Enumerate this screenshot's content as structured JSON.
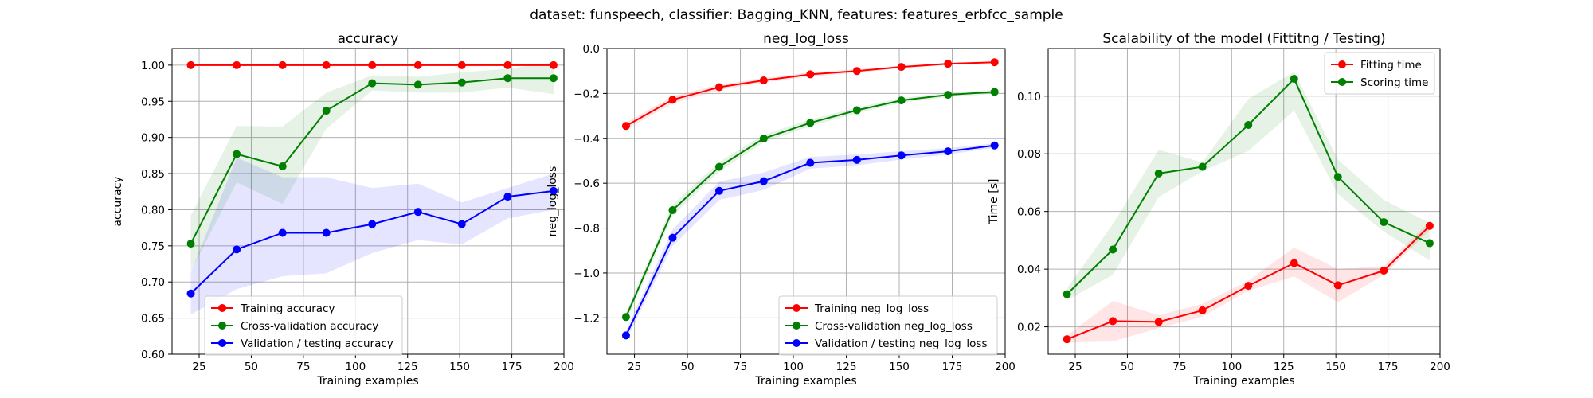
{
  "suptitle": "dataset: funspeech, classifier: Bagging_KNN, features: features_erbfcc_sample",
  "colors": {
    "red": "#ff0000",
    "green": "#008000",
    "blue": "#0000ff"
  },
  "chart_data": [
    {
      "type": "line",
      "title": "accuracy",
      "xlabel": "Training examples",
      "ylabel": "accuracy",
      "xlim": [
        12,
        200
      ],
      "ylim": [
        0.6,
        1.023
      ],
      "xticks": [
        25,
        50,
        75,
        100,
        125,
        150,
        175,
        200
      ],
      "yticks": [
        0.6,
        0.65,
        0.7,
        0.75,
        0.8,
        0.85,
        0.9,
        0.95,
        1.0
      ],
      "ytick_labels": [
        "0.60",
        "0.65",
        "0.70",
        "0.75",
        "0.80",
        "0.85",
        "0.90",
        "0.95",
        "1.00"
      ],
      "grid": true,
      "legend": "lower left",
      "x": [
        21,
        43,
        65,
        86,
        108,
        130,
        151,
        173,
        195
      ],
      "series": [
        {
          "name": "Training accuracy",
          "color": "#ff0000",
          "values": [
            1.0,
            1.0,
            1.0,
            1.0,
            1.0,
            1.0,
            1.0,
            1.0,
            1.0
          ],
          "lower": [
            1.0,
            1.0,
            1.0,
            1.0,
            1.0,
            1.0,
            1.0,
            1.0,
            1.0
          ],
          "upper": [
            1.0,
            1.0,
            1.0,
            1.0,
            1.0,
            1.0,
            1.0,
            1.0,
            1.0
          ]
        },
        {
          "name": "Cross-validation accuracy",
          "color": "#008000",
          "values": [
            0.753,
            0.877,
            0.86,
            0.937,
            0.975,
            0.973,
            0.976,
            0.982,
            0.982
          ],
          "lower": [
            0.715,
            0.838,
            0.808,
            0.912,
            0.965,
            0.962,
            0.962,
            0.969,
            0.96
          ],
          "upper": [
            0.792,
            0.916,
            0.915,
            0.962,
            0.986,
            0.984,
            0.99,
            0.995,
            1.004
          ]
        },
        {
          "name": "Validation / testing accuracy",
          "color": "#0000ff",
          "values": [
            0.684,
            0.745,
            0.768,
            0.768,
            0.78,
            0.797,
            0.78,
            0.818,
            0.826
          ],
          "lower": [
            0.655,
            0.69,
            0.708,
            0.712,
            0.74,
            0.758,
            0.752,
            0.788,
            0.8
          ],
          "upper": [
            0.713,
            0.872,
            0.845,
            0.845,
            0.83,
            0.836,
            0.81,
            0.83,
            0.85
          ]
        }
      ]
    },
    {
      "type": "line",
      "title": "neg_log_loss",
      "xlabel": "Training examples",
      "ylabel": "neg_log_loss",
      "xlim": [
        12,
        200
      ],
      "ylim": [
        -1.362,
        0.0
      ],
      "xticks": [
        25,
        50,
        75,
        100,
        125,
        150,
        175,
        200
      ],
      "yticks": [
        -1.2,
        -1.0,
        -0.8,
        -0.6,
        -0.4,
        -0.2,
        0.0
      ],
      "ytick_labels": [
        "−1.2",
        "−1.0",
        "−0.8",
        "−0.6",
        "−0.4",
        "−0.2",
        "0.0"
      ],
      "grid": true,
      "legend": "lower right",
      "x": [
        21,
        43,
        65,
        86,
        108,
        130,
        151,
        173,
        195
      ],
      "series": [
        {
          "name": "Training neg_log_loss",
          "color": "#ff0000",
          "values": [
            -0.345,
            -0.228,
            -0.172,
            -0.142,
            -0.115,
            -0.1,
            -0.082,
            -0.068,
            -0.061
          ],
          "lower": [
            -0.36,
            -0.245,
            -0.185,
            -0.152,
            -0.124,
            -0.108,
            -0.088,
            -0.073,
            -0.065
          ],
          "upper": [
            -0.33,
            -0.212,
            -0.16,
            -0.132,
            -0.106,
            -0.092,
            -0.076,
            -0.063,
            -0.057
          ]
        },
        {
          "name": "Cross-validation neg_log_loss",
          "color": "#008000",
          "values": [
            -1.196,
            -0.72,
            -0.527,
            -0.401,
            -0.331,
            -0.275,
            -0.231,
            -0.206,
            -0.193
          ],
          "lower": [
            -1.215,
            -0.745,
            -0.548,
            -0.418,
            -0.346,
            -0.288,
            -0.242,
            -0.216,
            -0.202
          ],
          "upper": [
            -1.177,
            -0.695,
            -0.506,
            -0.384,
            -0.316,
            -0.262,
            -0.22,
            -0.196,
            -0.184
          ]
        },
        {
          "name": "Validation / testing neg_log_loss",
          "color": "#0000ff",
          "values": [
            -1.278,
            -0.843,
            -0.634,
            -0.591,
            -0.509,
            -0.496,
            -0.476,
            -0.458,
            -0.432
          ],
          "lower": [
            -1.3,
            -0.88,
            -0.675,
            -0.63,
            -0.535,
            -0.52,
            -0.495,
            -0.472,
            -0.442
          ],
          "upper": [
            -1.256,
            -0.806,
            -0.593,
            -0.552,
            -0.483,
            -0.472,
            -0.457,
            -0.444,
            -0.422
          ]
        }
      ]
    },
    {
      "type": "line",
      "title": "Scalability of the model (Fittitng / Testing)",
      "xlabel": "Training examples",
      "ylabel": "Time [s]",
      "xlim": [
        12,
        200
      ],
      "ylim": [
        0.0105,
        0.1165
      ],
      "xticks": [
        25,
        50,
        75,
        100,
        125,
        150,
        175,
        200
      ],
      "yticks": [
        0.02,
        0.04,
        0.06,
        0.08,
        0.1
      ],
      "ytick_labels": [
        "0.02",
        "0.04",
        "0.06",
        "0.08",
        "0.10"
      ],
      "grid": true,
      "legend": "upper right",
      "x": [
        21,
        43,
        65,
        86,
        108,
        130,
        151,
        173,
        195
      ],
      "series": [
        {
          "name": "Fitting time",
          "color": "#ff0000",
          "values": [
            0.0157,
            0.022,
            0.0217,
            0.0257,
            0.0342,
            0.0421,
            0.0344,
            0.0395,
            0.055
          ],
          "lower": [
            0.0145,
            0.015,
            0.0195,
            0.0235,
            0.0325,
            0.0375,
            0.0285,
            0.038,
            0.0535
          ],
          "upper": [
            0.017,
            0.029,
            0.024,
            0.028,
            0.036,
            0.0475,
            0.04,
            0.041,
            0.0565
          ]
        },
        {
          "name": "Scoring time",
          "color": "#008000",
          "values": [
            0.0313,
            0.0468,
            0.0732,
            0.0755,
            0.09,
            0.106,
            0.072,
            0.0563,
            0.049
          ],
          "lower": [
            0.0293,
            0.038,
            0.065,
            0.074,
            0.081,
            0.095,
            0.066,
            0.053,
            0.043
          ],
          "upper": [
            0.0333,
            0.0556,
            0.0814,
            0.077,
            0.099,
            0.1085,
            0.078,
            0.064,
            0.056
          ]
        }
      ]
    }
  ]
}
